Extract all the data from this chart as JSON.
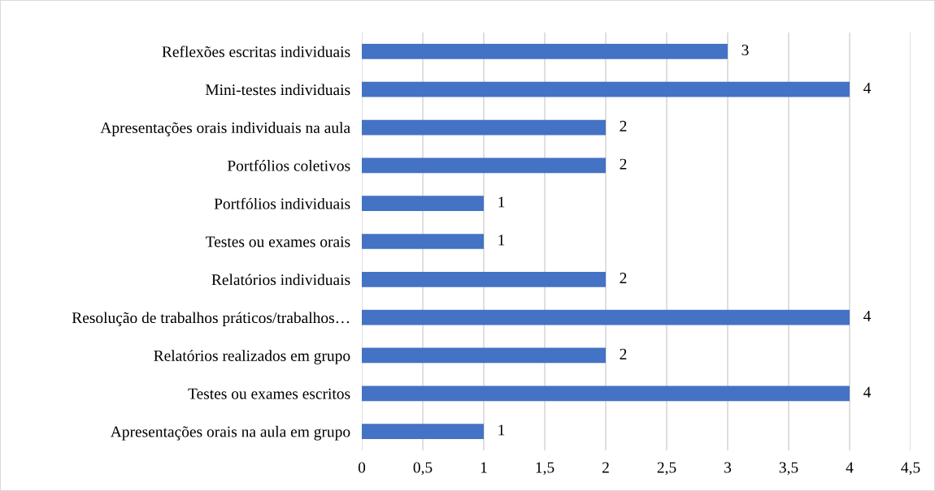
{
  "chart_data": {
    "type": "bar",
    "orientation": "horizontal",
    "categories": [
      "Reflexões escritas individuais",
      "Mini-testes individuais",
      "Apresentações orais individuais na aula",
      "Portfólios coletivos",
      "Portfólios individuais",
      "Testes ou exames orais",
      "Relatórios individuais",
      "Resolução de trabalhos práticos/trabalhos…",
      "Relatórios realizados em grupo",
      "Testes ou exames escritos",
      "Apresentações orais na aula em grupo"
    ],
    "values": [
      3,
      4,
      2,
      2,
      1,
      1,
      2,
      4,
      2,
      4,
      1
    ],
    "color": "#4472c4",
    "xlim": [
      0,
      4.5
    ],
    "xticks": [
      0,
      {
        "value": 0.5,
        "label": "0,5"
      },
      1,
      {
        "value": 1.5,
        "label": "1,5"
      },
      2,
      {
        "value": 2.5,
        "label": "2,5"
      },
      3,
      {
        "value": 3.5,
        "label": "3,5"
      },
      4,
      {
        "value": 4.5,
        "label": "4,5"
      }
    ],
    "grid": "x",
    "data_labels": true
  }
}
